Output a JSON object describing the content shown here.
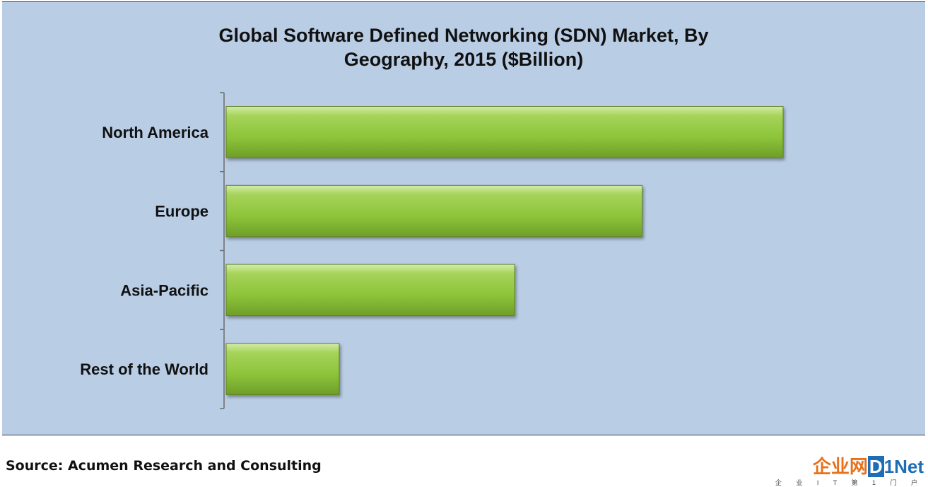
{
  "chart_data": {
    "type": "bar",
    "orientation": "horizontal",
    "title_lines": [
      "Global Software Defined Networking (SDN) Market, By",
      "Geography, 2015 ($Billion)"
    ],
    "categories": [
      "North America",
      "Europe",
      "Asia-Pacific",
      "Rest of the World"
    ],
    "values": [
      100,
      74.7,
      51.8,
      20.3
    ],
    "xlim": [
      0,
      100
    ],
    "bar_color": "#92c83e",
    "background_color": "#b9cde5",
    "grid": false,
    "legend": "none"
  },
  "source": "Source: Acumen Research and Consulting",
  "logo": {
    "cn_text": "企业网",
    "d_text": "D",
    "net_text": "1Net",
    "subtitle": "企 业 I T 第 1 门 户"
  }
}
